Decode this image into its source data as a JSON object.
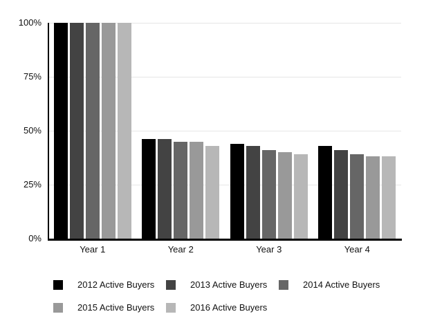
{
  "chart_data": {
    "type": "bar",
    "categories": [
      "Year 1",
      "Year 2",
      "Year 3",
      "Year 4"
    ],
    "series": [
      {
        "name": "2012 Active Buyers",
        "color": "#000000",
        "values": [
          100,
          46,
          44,
          43
        ]
      },
      {
        "name": "2013 Active Buyers",
        "color": "#434343",
        "values": [
          100,
          46,
          43,
          41
        ]
      },
      {
        "name": "2014 Active Buyers",
        "color": "#666666",
        "values": [
          100,
          45,
          41,
          39
        ]
      },
      {
        "name": "2015 Active Buyers",
        "color": "#999999",
        "values": [
          100,
          45,
          40,
          38
        ]
      },
      {
        "name": "2016 Active Buyers",
        "color": "#b7b7b7",
        "values": [
          100,
          43,
          39,
          38
        ]
      }
    ],
    "xlabel": "",
    "ylabel": "",
    "ylim": [
      0,
      100
    ],
    "ytick_values": [
      0,
      25,
      50,
      75,
      100
    ],
    "ytick_labels": [
      "0%",
      "25%",
      "50%",
      "75%",
      "100%"
    ],
    "grid": "horizontal",
    "gridline_color": "#e6e6e6",
    "axis_color": "#000000",
    "background_color": "#ffffff",
    "legend_position": "bottom",
    "legend_rows": [
      3,
      2
    ]
  }
}
